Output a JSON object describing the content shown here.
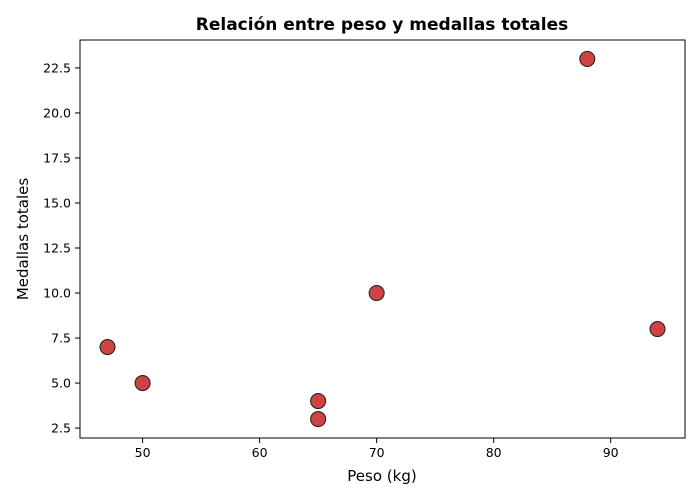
{
  "chart_data": {
    "type": "scatter",
    "title": "Relación entre peso y medallas totales",
    "xlabel": "Peso (kg)",
    "ylabel": "Medallas totales",
    "xlim": [
      44.65,
      96.35
    ],
    "ylim": [
      1.95,
      24.05
    ],
    "x_ticks": [
      50,
      60,
      70,
      80,
      90
    ],
    "x_tick_labels": [
      "50",
      "60",
      "70",
      "80",
      "90"
    ],
    "y_ticks": [
      2.5,
      5.0,
      7.5,
      10.0,
      12.5,
      15.0,
      17.5,
      20.0,
      22.5
    ],
    "y_tick_labels": [
      "2.5",
      "5.0",
      "7.5",
      "10.0",
      "12.5",
      "15.0",
      "17.5",
      "20.0",
      "22.5"
    ],
    "grid": false,
    "points": [
      {
        "x": 88,
        "y": 23
      },
      {
        "x": 70,
        "y": 10
      },
      {
        "x": 94,
        "y": 8
      },
      {
        "x": 47,
        "y": 7
      },
      {
        "x": 50,
        "y": 5
      },
      {
        "x": 65,
        "y": 4
      },
      {
        "x": 65,
        "y": 3
      }
    ],
    "marker_color": "#cc3333",
    "marker_edge_color": "#262626"
  }
}
